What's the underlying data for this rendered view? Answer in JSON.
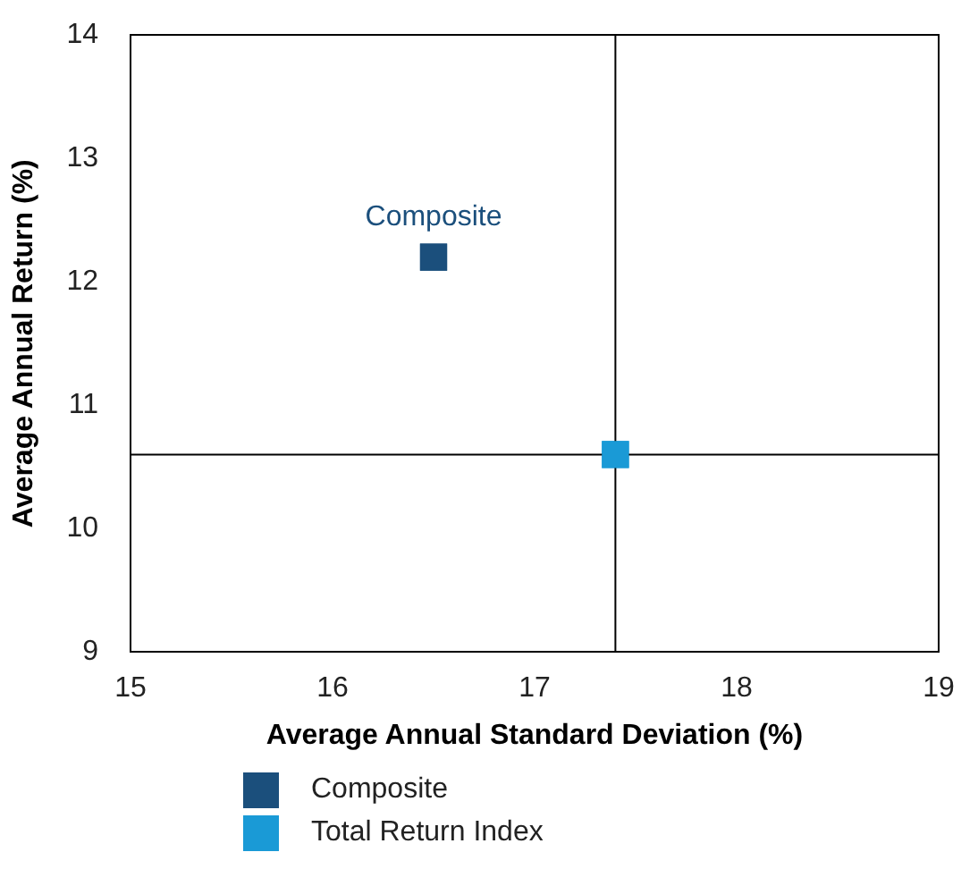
{
  "chart_data": {
    "type": "scatter",
    "xlabel": "Average Annual Standard Deviation (%)",
    "ylabel": "Average Annual Return (%)",
    "xlim": [
      15,
      19
    ],
    "xticks": [
      15,
      16,
      17,
      18,
      19
    ],
    "ylim": [
      9,
      14
    ],
    "yticks": [
      9,
      10,
      11,
      12,
      13,
      14
    ],
    "series": [
      {
        "name": "Composite",
        "color": "#1b4f7c",
        "x": [
          16.5
        ],
        "values": [
          12.2
        ]
      },
      {
        "name": "Total Return Index",
        "color": "#1a9ad6",
        "x": [
          17.4
        ],
        "values": [
          10.6
        ]
      }
    ],
    "ref_lines": [
      {
        "axis": "x",
        "value": 17.4,
        "color": "#000000"
      },
      {
        "axis": "y",
        "value": 10.6,
        "color": "#000000"
      }
    ],
    "annotations": [
      {
        "text": "Composite",
        "x": 16.5,
        "y": 12.2
      }
    ],
    "marker": "square",
    "grid": false,
    "legend": "bottom"
  }
}
